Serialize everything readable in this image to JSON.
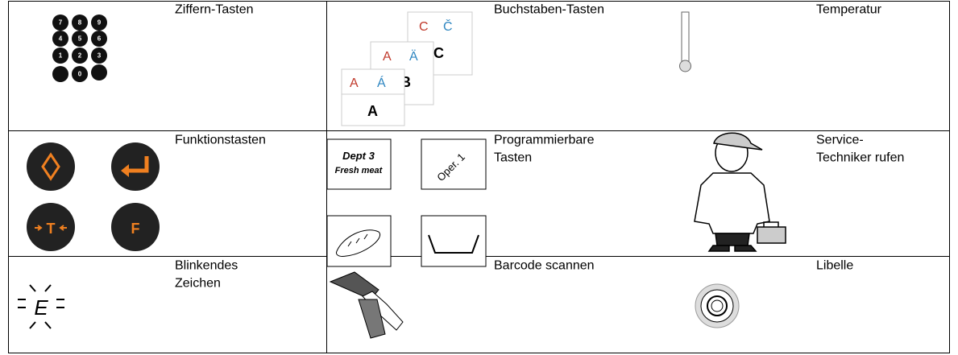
{
  "table": {
    "rows": [
      [
        {
          "keys": [
            "7",
            "8",
            "9",
            "4",
            "5",
            "6",
            "1",
            "2",
            "3",
            "0"
          ],
          "label": "Ziffern-Tasten"
        },
        {
          "cards": [
            {
              "accents": [
                "C",
                "Č"
              ],
              "letter": "C"
            },
            {
              "accents": [
                "A",
                "Ä"
              ],
              "letter": "B"
            },
            {
              "accents": [
                "A",
                "Á"
              ],
              "letter": "A"
            }
          ],
          "label": "Buchstaben-Tasten"
        },
        {
          "label": "Temperatur"
        }
      ],
      [
        {
          "keys": [
            "T",
            "F"
          ],
          "label": "Funktionstasten"
        },
        {
          "keys": [
            "Dept 3",
            "Fresh meat",
            "Oper. 1"
          ],
          "label": [
            "Programmierbare",
            "Tasten"
          ]
        },
        {
          "label": [
            "Service-",
            "Techniker rufen"
          ]
        }
      ],
      [
        {
          "display": "E",
          "label": [
            "Blinkendes",
            "Zeichen"
          ]
        },
        {
          "label": "Barcode scannen"
        },
        {
          "label": "Libelle"
        }
      ]
    ]
  }
}
